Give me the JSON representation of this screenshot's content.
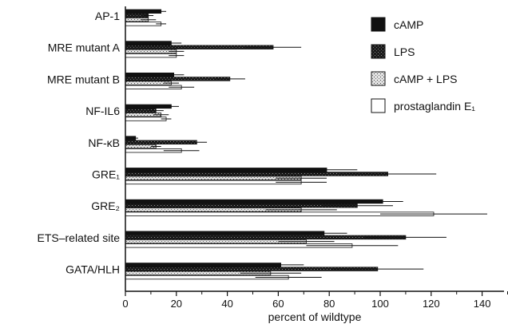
{
  "chart_data": {
    "type": "bar",
    "orientation": "horizontal",
    "categories": [
      "AP-1",
      "MRE mutant A",
      "MRE mutant B",
      "NF-IL6",
      "NF-κB",
      "GRE₁",
      "GRE₂",
      "ETS–related site",
      "GATA/HLH"
    ],
    "series": [
      {
        "name": "cAMP",
        "values": [
          14,
          18,
          19,
          18,
          4,
          79,
          101,
          78,
          61
        ],
        "errors": [
          2,
          4,
          4,
          3,
          1,
          12,
          8,
          9,
          9
        ],
        "color": "#111111",
        "pattern": "solid"
      },
      {
        "name": "LPS",
        "values": [
          9,
          58,
          41,
          12,
          28,
          103,
          91,
          110,
          99
        ],
        "errors": [
          2,
          11,
          6,
          3,
          4,
          19,
          14,
          16,
          18
        ],
        "color": "#222222",
        "pattern": "dark-stipple"
      },
      {
        "name": "cAMP + LPS",
        "values": [
          9,
          20,
          18,
          14,
          12,
          69,
          69,
          71,
          57
        ],
        "errors": [
          3,
          3,
          3,
          3,
          2,
          10,
          14,
          11,
          12
        ],
        "color": "#bfbfbf",
        "pattern": "stipple"
      },
      {
        "name": "prostaglandin E₁",
        "values": [
          14,
          20,
          22,
          16,
          22,
          69,
          121,
          89,
          64
        ],
        "errors": [
          2,
          3,
          5,
          2,
          7,
          10,
          21,
          18,
          13
        ],
        "color": "#ffffff",
        "pattern": "hollow"
      }
    ],
    "xlabel": "percent of wildtype",
    "xlim": [
      0,
      150
    ],
    "xticks": [
      "0",
      "20",
      "40",
      "60",
      "80",
      "100",
      "120",
      "140"
    ],
    "legend_position": "top-right",
    "grid": false
  }
}
